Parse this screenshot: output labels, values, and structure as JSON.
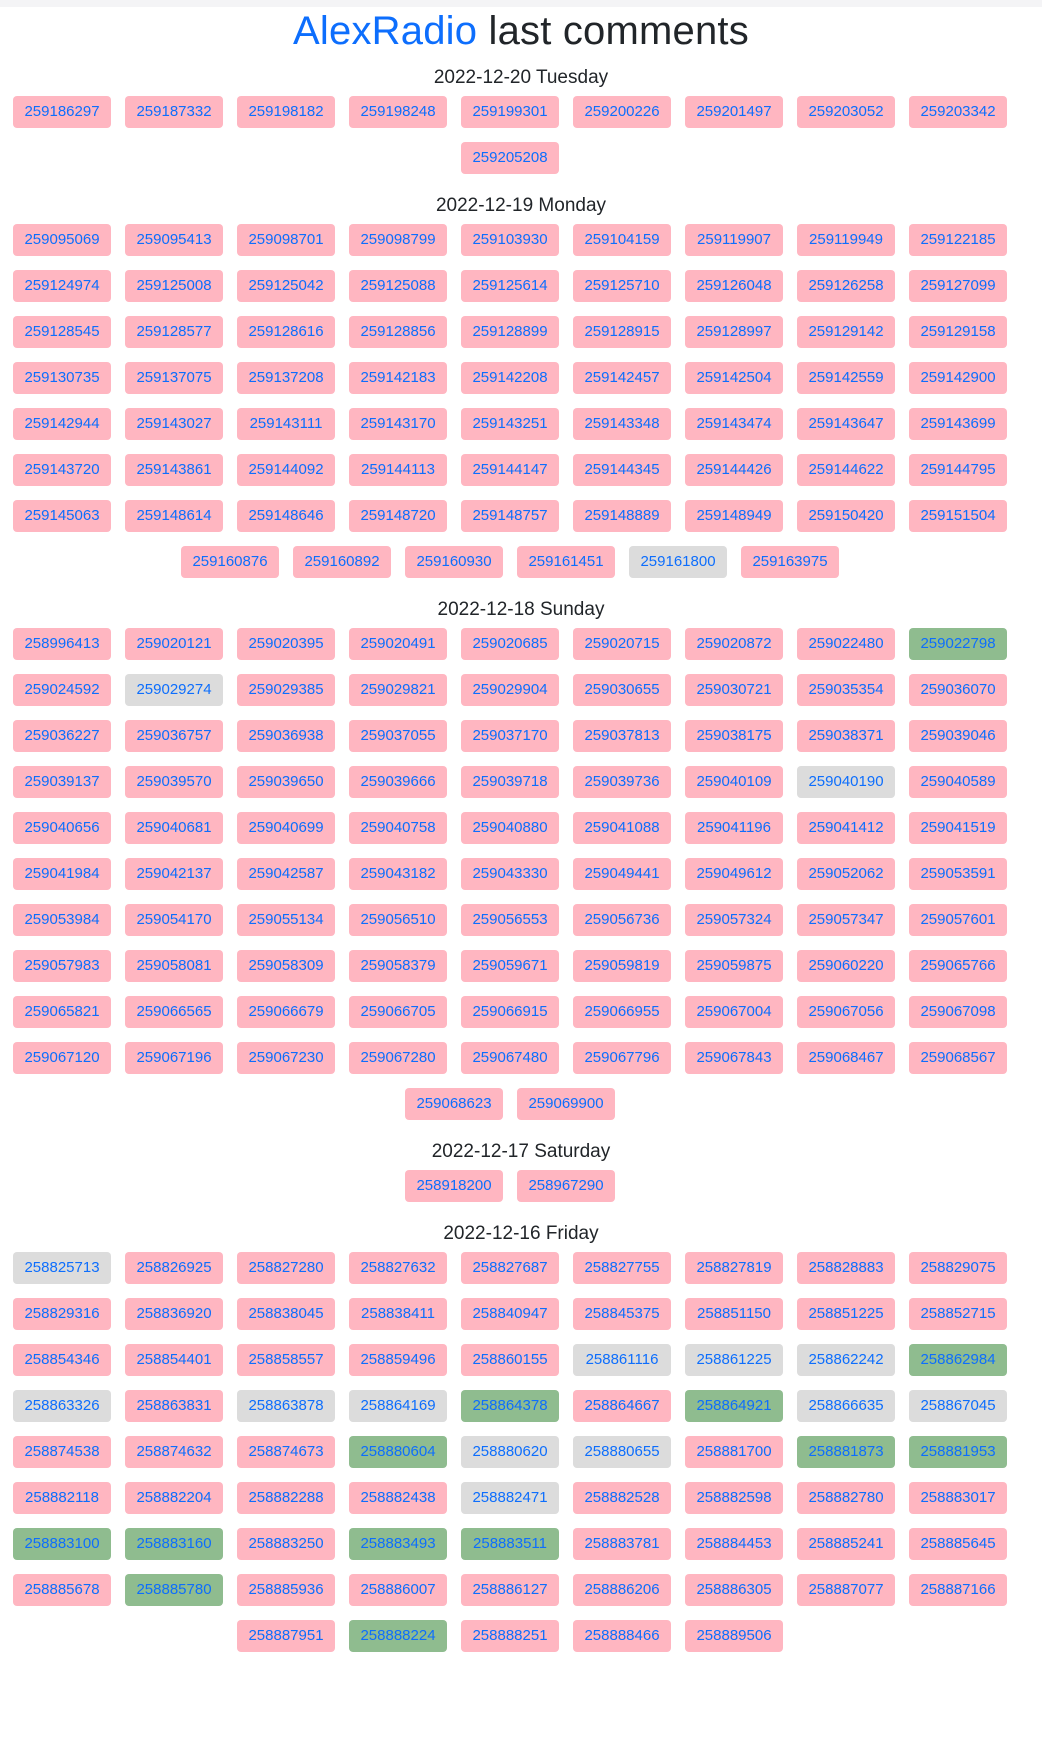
{
  "header": {
    "brand": "AlexRadio",
    "title_rest": " last comments"
  },
  "colors": {
    "pink": "#ffb6c1",
    "gray": "#dcdcdc",
    "green": "#8fbc8f",
    "link": "#0d6efd"
  },
  "days": [
    {
      "date": "2022-12-20 Tuesday",
      "items": [
        {
          "id": "259186297",
          "s": "pink"
        },
        {
          "id": "259187332",
          "s": "pink"
        },
        {
          "id": "259198182",
          "s": "pink"
        },
        {
          "id": "259198248",
          "s": "pink"
        },
        {
          "id": "259199301",
          "s": "pink"
        },
        {
          "id": "259200226",
          "s": "pink"
        },
        {
          "id": "259201497",
          "s": "pink"
        },
        {
          "id": "259203052",
          "s": "pink"
        },
        {
          "id": "259203342",
          "s": "pink"
        },
        {
          "id": "259205208",
          "s": "pink"
        }
      ]
    },
    {
      "date": "2022-12-19 Monday",
      "items": [
        {
          "id": "259095069",
          "s": "pink"
        },
        {
          "id": "259095413",
          "s": "pink"
        },
        {
          "id": "259098701",
          "s": "pink"
        },
        {
          "id": "259098799",
          "s": "pink"
        },
        {
          "id": "259103930",
          "s": "pink"
        },
        {
          "id": "259104159",
          "s": "pink"
        },
        {
          "id": "259119907",
          "s": "pink"
        },
        {
          "id": "259119949",
          "s": "pink"
        },
        {
          "id": "259122185",
          "s": "pink"
        },
        {
          "id": "259124974",
          "s": "pink"
        },
        {
          "id": "259125008",
          "s": "pink"
        },
        {
          "id": "259125042",
          "s": "pink"
        },
        {
          "id": "259125088",
          "s": "pink"
        },
        {
          "id": "259125614",
          "s": "pink"
        },
        {
          "id": "259125710",
          "s": "pink"
        },
        {
          "id": "259126048",
          "s": "pink"
        },
        {
          "id": "259126258",
          "s": "pink"
        },
        {
          "id": "259127099",
          "s": "pink"
        },
        {
          "id": "259128545",
          "s": "pink"
        },
        {
          "id": "259128577",
          "s": "pink"
        },
        {
          "id": "259128616",
          "s": "pink"
        },
        {
          "id": "259128856",
          "s": "pink"
        },
        {
          "id": "259128899",
          "s": "pink"
        },
        {
          "id": "259128915",
          "s": "pink"
        },
        {
          "id": "259128997",
          "s": "pink"
        },
        {
          "id": "259129142",
          "s": "pink"
        },
        {
          "id": "259129158",
          "s": "pink"
        },
        {
          "id": "259130735",
          "s": "pink"
        },
        {
          "id": "259137075",
          "s": "pink"
        },
        {
          "id": "259137208",
          "s": "pink"
        },
        {
          "id": "259142183",
          "s": "pink"
        },
        {
          "id": "259142208",
          "s": "pink"
        },
        {
          "id": "259142457",
          "s": "pink"
        },
        {
          "id": "259142504",
          "s": "pink"
        },
        {
          "id": "259142559",
          "s": "pink"
        },
        {
          "id": "259142900",
          "s": "pink"
        },
        {
          "id": "259142944",
          "s": "pink"
        },
        {
          "id": "259143027",
          "s": "pink"
        },
        {
          "id": "259143111",
          "s": "pink"
        },
        {
          "id": "259143170",
          "s": "pink"
        },
        {
          "id": "259143251",
          "s": "pink"
        },
        {
          "id": "259143348",
          "s": "pink"
        },
        {
          "id": "259143474",
          "s": "pink"
        },
        {
          "id": "259143647",
          "s": "pink"
        },
        {
          "id": "259143699",
          "s": "pink"
        },
        {
          "id": "259143720",
          "s": "pink"
        },
        {
          "id": "259143861",
          "s": "pink"
        },
        {
          "id": "259144092",
          "s": "pink"
        },
        {
          "id": "259144113",
          "s": "pink"
        },
        {
          "id": "259144147",
          "s": "pink"
        },
        {
          "id": "259144345",
          "s": "pink"
        },
        {
          "id": "259144426",
          "s": "pink"
        },
        {
          "id": "259144622",
          "s": "pink"
        },
        {
          "id": "259144795",
          "s": "pink"
        },
        {
          "id": "259145063",
          "s": "pink"
        },
        {
          "id": "259148614",
          "s": "pink"
        },
        {
          "id": "259148646",
          "s": "pink"
        },
        {
          "id": "259148720",
          "s": "pink"
        },
        {
          "id": "259148757",
          "s": "pink"
        },
        {
          "id": "259148889",
          "s": "pink"
        },
        {
          "id": "259148949",
          "s": "pink"
        },
        {
          "id": "259150420",
          "s": "pink"
        },
        {
          "id": "259151504",
          "s": "pink"
        },
        {
          "id": "259160876",
          "s": "pink"
        },
        {
          "id": "259160892",
          "s": "pink"
        },
        {
          "id": "259160930",
          "s": "pink"
        },
        {
          "id": "259161451",
          "s": "pink"
        },
        {
          "id": "259161800",
          "s": "gray"
        },
        {
          "id": "259163975",
          "s": "pink"
        }
      ]
    },
    {
      "date": "2022-12-18 Sunday",
      "items": [
        {
          "id": "258996413",
          "s": "pink"
        },
        {
          "id": "259020121",
          "s": "pink"
        },
        {
          "id": "259020395",
          "s": "pink"
        },
        {
          "id": "259020491",
          "s": "pink"
        },
        {
          "id": "259020685",
          "s": "pink"
        },
        {
          "id": "259020715",
          "s": "pink"
        },
        {
          "id": "259020872",
          "s": "pink"
        },
        {
          "id": "259022480",
          "s": "pink"
        },
        {
          "id": "259022798",
          "s": "green"
        },
        {
          "id": "259024592",
          "s": "pink"
        },
        {
          "id": "259029274",
          "s": "gray"
        },
        {
          "id": "259029385",
          "s": "pink"
        },
        {
          "id": "259029821",
          "s": "pink"
        },
        {
          "id": "259029904",
          "s": "pink"
        },
        {
          "id": "259030655",
          "s": "pink"
        },
        {
          "id": "259030721",
          "s": "pink"
        },
        {
          "id": "259035354",
          "s": "pink"
        },
        {
          "id": "259036070",
          "s": "pink"
        },
        {
          "id": "259036227",
          "s": "pink"
        },
        {
          "id": "259036757",
          "s": "pink"
        },
        {
          "id": "259036938",
          "s": "pink"
        },
        {
          "id": "259037055",
          "s": "pink"
        },
        {
          "id": "259037170",
          "s": "pink"
        },
        {
          "id": "259037813",
          "s": "pink"
        },
        {
          "id": "259038175",
          "s": "pink"
        },
        {
          "id": "259038371",
          "s": "pink"
        },
        {
          "id": "259039046",
          "s": "pink"
        },
        {
          "id": "259039137",
          "s": "pink"
        },
        {
          "id": "259039570",
          "s": "pink"
        },
        {
          "id": "259039650",
          "s": "pink"
        },
        {
          "id": "259039666",
          "s": "pink"
        },
        {
          "id": "259039718",
          "s": "pink"
        },
        {
          "id": "259039736",
          "s": "pink"
        },
        {
          "id": "259040109",
          "s": "pink"
        },
        {
          "id": "259040190",
          "s": "gray"
        },
        {
          "id": "259040589",
          "s": "pink"
        },
        {
          "id": "259040656",
          "s": "pink"
        },
        {
          "id": "259040681",
          "s": "pink"
        },
        {
          "id": "259040699",
          "s": "pink"
        },
        {
          "id": "259040758",
          "s": "pink"
        },
        {
          "id": "259040880",
          "s": "pink"
        },
        {
          "id": "259041088",
          "s": "pink"
        },
        {
          "id": "259041196",
          "s": "pink"
        },
        {
          "id": "259041412",
          "s": "pink"
        },
        {
          "id": "259041519",
          "s": "pink"
        },
        {
          "id": "259041984",
          "s": "pink"
        },
        {
          "id": "259042137",
          "s": "pink"
        },
        {
          "id": "259042587",
          "s": "pink"
        },
        {
          "id": "259043182",
          "s": "pink"
        },
        {
          "id": "259043330",
          "s": "pink"
        },
        {
          "id": "259049441",
          "s": "pink"
        },
        {
          "id": "259049612",
          "s": "pink"
        },
        {
          "id": "259052062",
          "s": "pink"
        },
        {
          "id": "259053591",
          "s": "pink"
        },
        {
          "id": "259053984",
          "s": "pink"
        },
        {
          "id": "259054170",
          "s": "pink"
        },
        {
          "id": "259055134",
          "s": "pink"
        },
        {
          "id": "259056510",
          "s": "pink"
        },
        {
          "id": "259056553",
          "s": "pink"
        },
        {
          "id": "259056736",
          "s": "pink"
        },
        {
          "id": "259057324",
          "s": "pink"
        },
        {
          "id": "259057347",
          "s": "pink"
        },
        {
          "id": "259057601",
          "s": "pink"
        },
        {
          "id": "259057983",
          "s": "pink"
        },
        {
          "id": "259058081",
          "s": "pink"
        },
        {
          "id": "259058309",
          "s": "pink"
        },
        {
          "id": "259058379",
          "s": "pink"
        },
        {
          "id": "259059671",
          "s": "pink"
        },
        {
          "id": "259059819",
          "s": "pink"
        },
        {
          "id": "259059875",
          "s": "pink"
        },
        {
          "id": "259060220",
          "s": "pink"
        },
        {
          "id": "259065766",
          "s": "pink"
        },
        {
          "id": "259065821",
          "s": "pink"
        },
        {
          "id": "259066565",
          "s": "pink"
        },
        {
          "id": "259066679",
          "s": "pink"
        },
        {
          "id": "259066705",
          "s": "pink"
        },
        {
          "id": "259066915",
          "s": "pink"
        },
        {
          "id": "259066955",
          "s": "pink"
        },
        {
          "id": "259067004",
          "s": "pink"
        },
        {
          "id": "259067056",
          "s": "pink"
        },
        {
          "id": "259067098",
          "s": "pink"
        },
        {
          "id": "259067120",
          "s": "pink"
        },
        {
          "id": "259067196",
          "s": "pink"
        },
        {
          "id": "259067230",
          "s": "pink"
        },
        {
          "id": "259067280",
          "s": "pink"
        },
        {
          "id": "259067480",
          "s": "pink"
        },
        {
          "id": "259067796",
          "s": "pink"
        },
        {
          "id": "259067843",
          "s": "pink"
        },
        {
          "id": "259068467",
          "s": "pink"
        },
        {
          "id": "259068567",
          "s": "pink"
        },
        {
          "id": "259068623",
          "s": "pink"
        },
        {
          "id": "259069900",
          "s": "pink"
        }
      ]
    },
    {
      "date": "2022-12-17 Saturday",
      "items": [
        {
          "id": "258918200",
          "s": "pink"
        },
        {
          "id": "258967290",
          "s": "pink"
        }
      ]
    },
    {
      "date": "2022-12-16 Friday",
      "items": [
        {
          "id": "258825713",
          "s": "gray"
        },
        {
          "id": "258826925",
          "s": "pink"
        },
        {
          "id": "258827280",
          "s": "pink"
        },
        {
          "id": "258827632",
          "s": "pink"
        },
        {
          "id": "258827687",
          "s": "pink"
        },
        {
          "id": "258827755",
          "s": "pink"
        },
        {
          "id": "258827819",
          "s": "pink"
        },
        {
          "id": "258828883",
          "s": "pink"
        },
        {
          "id": "258829075",
          "s": "pink"
        },
        {
          "id": "258829316",
          "s": "pink"
        },
        {
          "id": "258836920",
          "s": "pink"
        },
        {
          "id": "258838045",
          "s": "pink"
        },
        {
          "id": "258838411",
          "s": "pink"
        },
        {
          "id": "258840947",
          "s": "pink"
        },
        {
          "id": "258845375",
          "s": "pink"
        },
        {
          "id": "258851150",
          "s": "pink"
        },
        {
          "id": "258851225",
          "s": "pink"
        },
        {
          "id": "258852715",
          "s": "pink"
        },
        {
          "id": "258854346",
          "s": "pink"
        },
        {
          "id": "258854401",
          "s": "pink"
        },
        {
          "id": "258858557",
          "s": "pink"
        },
        {
          "id": "258859496",
          "s": "pink"
        },
        {
          "id": "258860155",
          "s": "pink"
        },
        {
          "id": "258861116",
          "s": "gray"
        },
        {
          "id": "258861225",
          "s": "gray"
        },
        {
          "id": "258862242",
          "s": "gray"
        },
        {
          "id": "258862984",
          "s": "green"
        },
        {
          "id": "258863326",
          "s": "gray"
        },
        {
          "id": "258863831",
          "s": "pink"
        },
        {
          "id": "258863878",
          "s": "gray"
        },
        {
          "id": "258864169",
          "s": "gray"
        },
        {
          "id": "258864378",
          "s": "green"
        },
        {
          "id": "258864667",
          "s": "pink"
        },
        {
          "id": "258864921",
          "s": "green"
        },
        {
          "id": "258866635",
          "s": "gray"
        },
        {
          "id": "258867045",
          "s": "gray"
        },
        {
          "id": "258874538",
          "s": "pink"
        },
        {
          "id": "258874632",
          "s": "pink"
        },
        {
          "id": "258874673",
          "s": "pink"
        },
        {
          "id": "258880604",
          "s": "green"
        },
        {
          "id": "258880620",
          "s": "gray"
        },
        {
          "id": "258880655",
          "s": "gray"
        },
        {
          "id": "258881700",
          "s": "pink"
        },
        {
          "id": "258881873",
          "s": "green"
        },
        {
          "id": "258881953",
          "s": "green"
        },
        {
          "id": "258882118",
          "s": "pink"
        },
        {
          "id": "258882204",
          "s": "pink"
        },
        {
          "id": "258882288",
          "s": "pink"
        },
        {
          "id": "258882438",
          "s": "pink"
        },
        {
          "id": "258882471",
          "s": "gray"
        },
        {
          "id": "258882528",
          "s": "pink"
        },
        {
          "id": "258882598",
          "s": "pink"
        },
        {
          "id": "258882780",
          "s": "pink"
        },
        {
          "id": "258883017",
          "s": "pink"
        },
        {
          "id": "258883100",
          "s": "green"
        },
        {
          "id": "258883160",
          "s": "green"
        },
        {
          "id": "258883250",
          "s": "pink"
        },
        {
          "id": "258883493",
          "s": "green"
        },
        {
          "id": "258883511",
          "s": "green"
        },
        {
          "id": "258883781",
          "s": "pink"
        },
        {
          "id": "258884453",
          "s": "pink"
        },
        {
          "id": "258885241",
          "s": "pink"
        },
        {
          "id": "258885645",
          "s": "pink"
        },
        {
          "id": "258885678",
          "s": "pink"
        },
        {
          "id": "258885780",
          "s": "green"
        },
        {
          "id": "258885936",
          "s": "pink"
        },
        {
          "id": "258886007",
          "s": "pink"
        },
        {
          "id": "258886127",
          "s": "pink"
        },
        {
          "id": "258886206",
          "s": "pink"
        },
        {
          "id": "258886305",
          "s": "pink"
        },
        {
          "id": "258887077",
          "s": "pink"
        },
        {
          "id": "258887166",
          "s": "pink"
        },
        {
          "id": "258887951",
          "s": "pink"
        },
        {
          "id": "258888224",
          "s": "green"
        },
        {
          "id": "258888251",
          "s": "pink"
        },
        {
          "id": "258888466",
          "s": "pink"
        },
        {
          "id": "258889506",
          "s": "pink"
        }
      ]
    }
  ]
}
